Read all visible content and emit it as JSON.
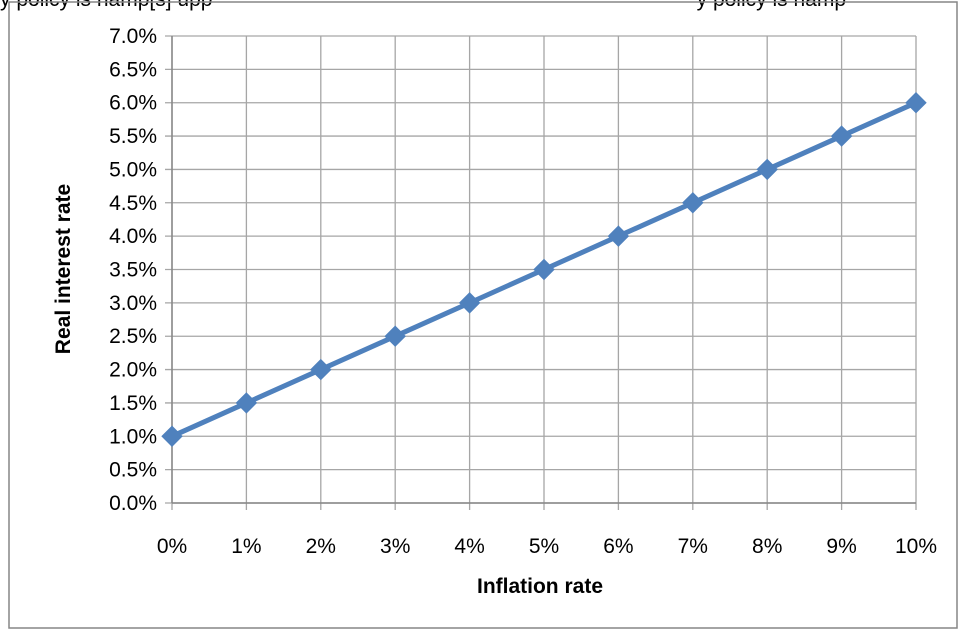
{
  "chart_data": {
    "type": "line",
    "title": "",
    "xlabel": "Inflation rate",
    "ylabel": "Real interest rate",
    "x": [
      "0%",
      "1%",
      "2%",
      "3%",
      "4%",
      "5%",
      "6%",
      "7%",
      "8%",
      "9%",
      "10%"
    ],
    "x_values": [
      0,
      1,
      2,
      3,
      4,
      5,
      6,
      7,
      8,
      9,
      10
    ],
    "xlim": [
      0,
      10
    ],
    "ylim": [
      0,
      7
    ],
    "y_ticks": [
      "0.0%",
      "0.5%",
      "1.0%",
      "1.5%",
      "2.0%",
      "2.5%",
      "3.0%",
      "3.5%",
      "4.0%",
      "4.5%",
      "5.0%",
      "5.5%",
      "6.0%",
      "6.5%",
      "7.0%"
    ],
    "y_tick_values": [
      0,
      0.5,
      1,
      1.5,
      2,
      2.5,
      3,
      3.5,
      4,
      4.5,
      5,
      5.5,
      6,
      6.5,
      7
    ],
    "series": [
      {
        "values": [
          1.0,
          1.5,
          2.0,
          2.5,
          3.0,
          3.5,
          4.0,
          4.5,
          5.0,
          5.5,
          6.0
        ],
        "color": "#4f81bd",
        "marker": "diamond"
      }
    ],
    "grid": true,
    "legend": "none",
    "gridline_color": "#a6a6a6",
    "border_color": "#868686"
  },
  "top_fragment": {
    "left_text": "y policy is hamp[s] upp",
    "right_text": "y policy is hamp"
  }
}
